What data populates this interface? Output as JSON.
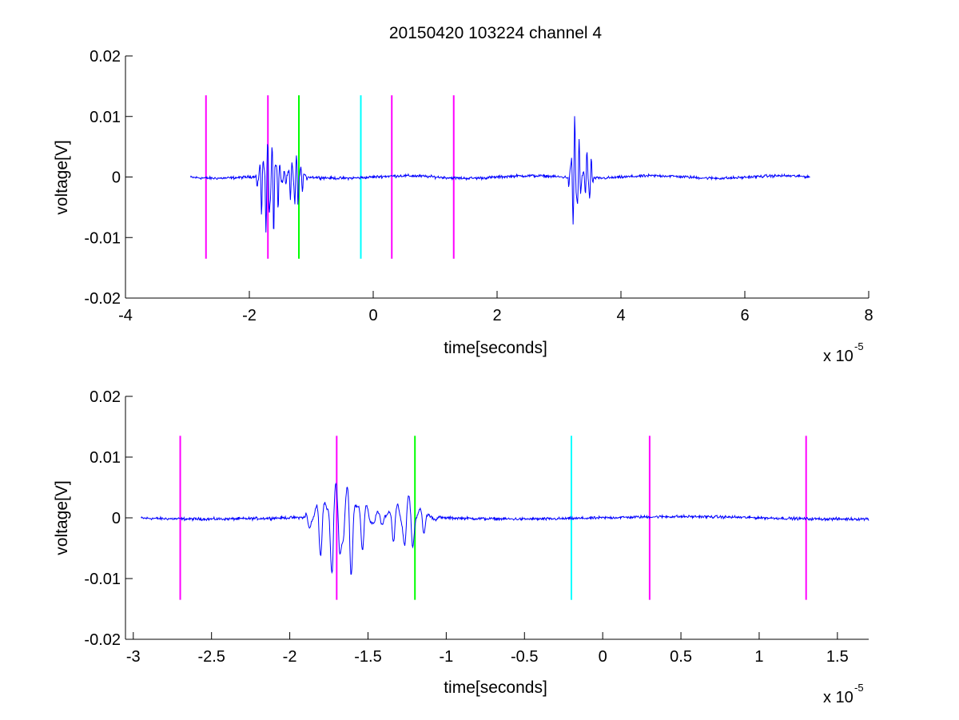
{
  "chart_data": [
    {
      "type": "line",
      "title": "20150420 103224 channel 4",
      "xlabel": "time[seconds]",
      "ylabel": "voltage[V]",
      "x_scale_label": "x 10",
      "x_scale_exponent": "-5",
      "xlim": [
        -4,
        8
      ],
      "ylim": [
        -0.02,
        0.02
      ],
      "x_ticks": [
        -4,
        -2,
        0,
        2,
        4,
        6,
        8
      ],
      "x_tick_labels": [
        "-4",
        "-2",
        "0",
        "2",
        "4",
        "6",
        "8"
      ],
      "y_ticks": [
        0.02,
        0.01,
        0,
        -0.01,
        -0.02
      ],
      "y_tick_labels": [
        "0.02",
        "0.01",
        "0",
        "-0.01",
        "-0.02"
      ],
      "grid": false,
      "signal_color": "#0000ff",
      "signal_range": [
        -2.95,
        7.05
      ],
      "signal_bursts": [
        {
          "start": -1.9,
          "end": -1.0,
          "peak_max": 0.006,
          "peak_min": -0.0123
        },
        {
          "start": 3.15,
          "end": 3.6,
          "peak_max": 0.012,
          "peak_min": -0.01
        }
      ],
      "markers": [
        {
          "x": -2.7,
          "color": "#ff00ff",
          "ymin": -0.0135,
          "ymax": 0.0135
        },
        {
          "x": -1.7,
          "color": "#ff00ff",
          "ymin": -0.0135,
          "ymax": 0.0135
        },
        {
          "x": -1.2,
          "color": "#00ff00",
          "ymin": -0.0135,
          "ymax": 0.0135
        },
        {
          "x": -0.2,
          "color": "#00ffff",
          "ymin": -0.0135,
          "ymax": 0.0135
        },
        {
          "x": 0.3,
          "color": "#ff00ff",
          "ymin": -0.0135,
          "ymax": 0.0135
        },
        {
          "x": 1.3,
          "color": "#ff00ff",
          "ymin": -0.0135,
          "ymax": 0.0135
        }
      ]
    },
    {
      "type": "line",
      "title": "",
      "xlabel": "time[seconds]",
      "ylabel": "voltage[V]",
      "x_scale_label": "x 10",
      "x_scale_exponent": "-5",
      "xlim": [
        -3.05,
        1.7
      ],
      "ylim": [
        -0.02,
        0.02
      ],
      "x_ticks": [
        -3,
        -2.5,
        -2,
        -1.5,
        -1,
        -0.5,
        0,
        0.5,
        1,
        1.5
      ],
      "x_tick_labels": [
        "-3",
        "-2.5",
        "-2",
        "-1.5",
        "-1",
        "-0.5",
        "0",
        "0.5",
        "1",
        "1.5"
      ],
      "y_ticks": [
        0.02,
        0.01,
        0,
        -0.01,
        -0.02
      ],
      "y_tick_labels": [
        "0.02",
        "0.01",
        "0",
        "-0.01",
        "-0.02"
      ],
      "grid": false,
      "signal_color": "#0000ff",
      "signal_range": [
        -2.95,
        1.7
      ],
      "signal_bursts": [
        {
          "start": -1.9,
          "end": -1.0,
          "peak_max": 0.006,
          "peak_min": -0.0123
        }
      ],
      "markers": [
        {
          "x": -2.7,
          "color": "#ff00ff",
          "ymin": -0.0135,
          "ymax": 0.0135
        },
        {
          "x": -1.7,
          "color": "#ff00ff",
          "ymin": -0.0135,
          "ymax": 0.0135
        },
        {
          "x": -1.2,
          "color": "#00ff00",
          "ymin": -0.0135,
          "ymax": 0.0135
        },
        {
          "x": -0.2,
          "color": "#00ffff",
          "ymin": -0.0135,
          "ymax": 0.0135
        },
        {
          "x": 0.3,
          "color": "#ff00ff",
          "ymin": -0.0135,
          "ymax": 0.0135
        },
        {
          "x": 1.3,
          "color": "#ff00ff",
          "ymin": -0.0135,
          "ymax": 0.0135
        }
      ]
    }
  ]
}
